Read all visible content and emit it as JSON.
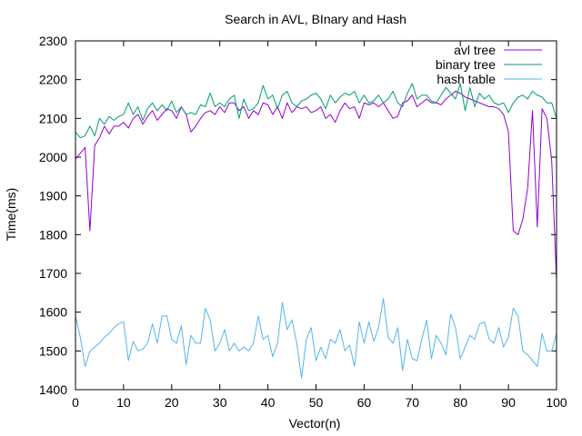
{
  "chart_data": {
    "type": "line",
    "title": "Search in AVL, BInary and Hash",
    "xlabel": "Vector(n)",
    "ylabel": "Time(ms)",
    "xlim": [
      0,
      100
    ],
    "ylim": [
      1400,
      2300
    ],
    "xticks": [
      0,
      10,
      20,
      30,
      40,
      50,
      60,
      70,
      80,
      90,
      100
    ],
    "yticks": [
      1400,
      1500,
      1600,
      1700,
      1800,
      1900,
      2000,
      2100,
      2200,
      2300
    ],
    "grid": false,
    "legend_position": "top-right",
    "x": [
      0,
      1,
      2,
      3,
      4,
      5,
      6,
      7,
      8,
      9,
      10,
      11,
      12,
      13,
      14,
      15,
      16,
      17,
      18,
      19,
      20,
      21,
      22,
      23,
      24,
      25,
      26,
      27,
      28,
      29,
      30,
      31,
      32,
      33,
      34,
      35,
      36,
      37,
      38,
      39,
      40,
      41,
      42,
      43,
      44,
      45,
      46,
      47,
      48,
      49,
      50,
      51,
      52,
      53,
      54,
      55,
      56,
      57,
      58,
      59,
      60,
      61,
      62,
      63,
      64,
      65,
      66,
      67,
      68,
      69,
      70,
      71,
      72,
      73,
      74,
      75,
      76,
      77,
      78,
      79,
      80,
      81,
      82,
      83,
      84,
      85,
      86,
      87,
      88,
      89,
      90,
      91,
      92,
      93,
      94,
      95,
      96,
      97,
      98,
      99,
      100
    ],
    "series": [
      {
        "name": "avl tree",
        "color": "#9400d3",
        "values": [
          1995,
          2010,
          2025,
          1810,
          2030,
          2050,
          2080,
          2060,
          2080,
          2080,
          2090,
          2075,
          2100,
          2110,
          2085,
          2105,
          2120,
          2095,
          2110,
          2125,
          2120,
          2100,
          2130,
          2110,
          2065,
          2080,
          2100,
          2115,
          2120,
          2110,
          2130,
          2115,
          2140,
          2140,
          2120,
          2130,
          2100,
          2120,
          2110,
          2140,
          2135,
          2110,
          2130,
          2100,
          2140,
          2115,
          2130,
          2125,
          2130,
          2115,
          2120,
          2130,
          2100,
          2110,
          2090,
          2120,
          2140,
          2125,
          2130,
          2100,
          2140,
          2135,
          2140,
          2130,
          2140,
          2120,
          2100,
          2105,
          2140,
          2145,
          2160,
          2130,
          2140,
          2150,
          2140,
          2140,
          2135,
          2150,
          2160,
          2170,
          2165,
          2155,
          2150,
          2145,
          2140,
          2135,
          2130,
          2130,
          2125,
          2110,
          2065,
          1810,
          1800,
          1840,
          1920,
          2120,
          1820,
          2125,
          2100,
          1990,
          1680
        ]
      },
      {
        "name": "binary tree",
        "color": "#009e73",
        "values": [
          2065,
          2050,
          2055,
          2080,
          2055,
          2100,
          2085,
          2105,
          2095,
          2105,
          2110,
          2140,
          2110,
          2130,
          2095,
          2125,
          2140,
          2120,
          2135,
          2120,
          2145,
          2115,
          2130,
          2110,
          2115,
          2110,
          2135,
          2130,
          2165,
          2130,
          2140,
          2130,
          2150,
          2160,
          2100,
          2150,
          2120,
          2125,
          2140,
          2185,
          2150,
          2160,
          2125,
          2160,
          2170,
          2140,
          2130,
          2145,
          2150,
          2160,
          2165,
          2150,
          2125,
          2160,
          2140,
          2155,
          2165,
          2160,
          2170,
          2140,
          2160,
          2140,
          2145,
          2160,
          2140,
          2150,
          2170,
          2140,
          2130,
          2165,
          2190,
          2150,
          2160,
          2160,
          2145,
          2140,
          2160,
          2180,
          2165,
          2150,
          2190,
          2120,
          2180,
          2130,
          2165,
          2150,
          2160,
          2140,
          2135,
          2140,
          2115,
          2140,
          2155,
          2160,
          2150,
          2170,
          2160,
          2155,
          2140,
          2140,
          2100
        ]
      },
      {
        "name": "hash table",
        "color": "#56b4e9",
        "values": [
          1590,
          1535,
          1460,
          1500,
          1510,
          1520,
          1535,
          1545,
          1560,
          1570,
          1575,
          1475,
          1525,
          1500,
          1505,
          1520,
          1570,
          1520,
          1590,
          1590,
          1530,
          1520,
          1565,
          1465,
          1540,
          1520,
          1520,
          1610,
          1580,
          1500,
          1520,
          1555,
          1500,
          1520,
          1500,
          1510,
          1500,
          1520,
          1590,
          1530,
          1540,
          1485,
          1520,
          1625,
          1555,
          1580,
          1520,
          1430,
          1530,
          1560,
          1475,
          1510,
          1480,
          1530,
          1520,
          1555,
          1500,
          1515,
          1460,
          1575,
          1520,
          1575,
          1525,
          1560,
          1635,
          1535,
          1520,
          1560,
          1450,
          1530,
          1480,
          1475,
          1530,
          1580,
          1480,
          1540,
          1520,
          1490,
          1595,
          1560,
          1480,
          1510,
          1540,
          1530,
          1570,
          1575,
          1530,
          1520,
          1560,
          1510,
          1535,
          1610,
          1590,
          1500,
          1490,
          1475,
          1460,
          1545,
          1500,
          1500,
          1545
        ]
      }
    ]
  }
}
